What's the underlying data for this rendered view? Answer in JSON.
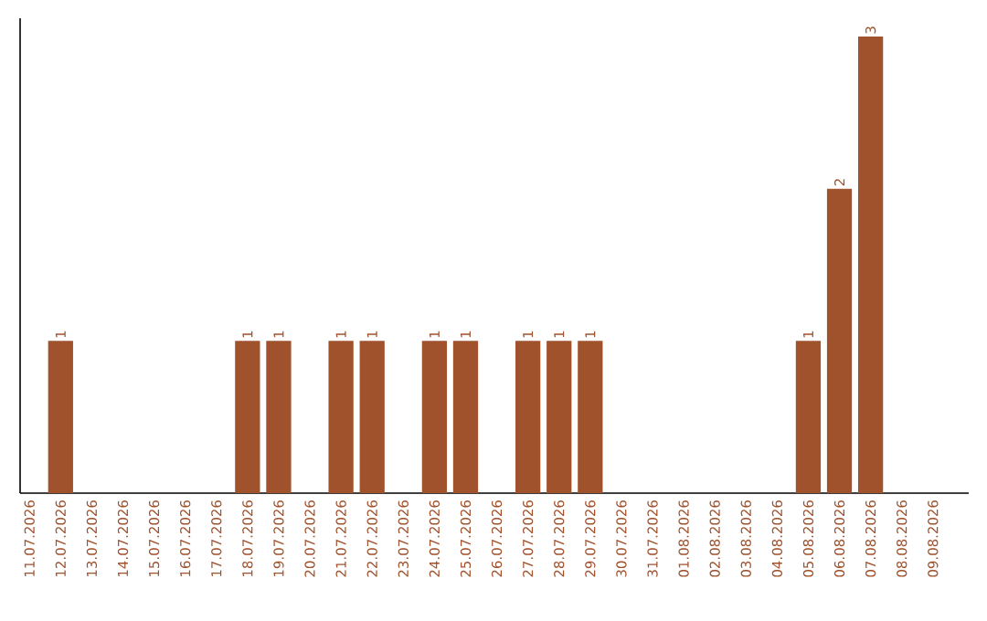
{
  "chart_data": {
    "type": "bar",
    "categories": [
      "11.07.2026",
      "12.07.2026",
      "13.07.2026",
      "14.07.2026",
      "15.07.2026",
      "16.07.2026",
      "17.07.2026",
      "18.07.2026",
      "19.07.2026",
      "20.07.2026",
      "21.07.2026",
      "22.07.2026",
      "23.07.2026",
      "24.07.2026",
      "25.07.2026",
      "26.07.2026",
      "27.07.2026",
      "28.07.2026",
      "29.07.2026",
      "30.07.2026",
      "31.07.2026",
      "01.08.2026",
      "02.08.2026",
      "03.08.2026",
      "04.08.2026",
      "05.08.2026",
      "06.08.2026",
      "07.08.2026",
      "08.08.2026",
      "09.08.2026"
    ],
    "values": [
      0,
      1,
      0,
      0,
      0,
      0,
      0,
      1,
      1,
      0,
      1,
      1,
      0,
      1,
      1,
      0,
      1,
      1,
      1,
      0,
      0,
      0,
      0,
      0,
      0,
      1,
      2,
      3,
      0,
      0
    ],
    "value_labels": [
      null,
      "1",
      null,
      null,
      null,
      null,
      null,
      "1",
      "1",
      null,
      "1",
      "1",
      null,
      "1",
      "1",
      null,
      "1",
      "1",
      "1",
      null,
      null,
      null,
      null,
      null,
      null,
      "1",
      "2",
      "3",
      null,
      null
    ],
    "color": "#a0522d"
  }
}
